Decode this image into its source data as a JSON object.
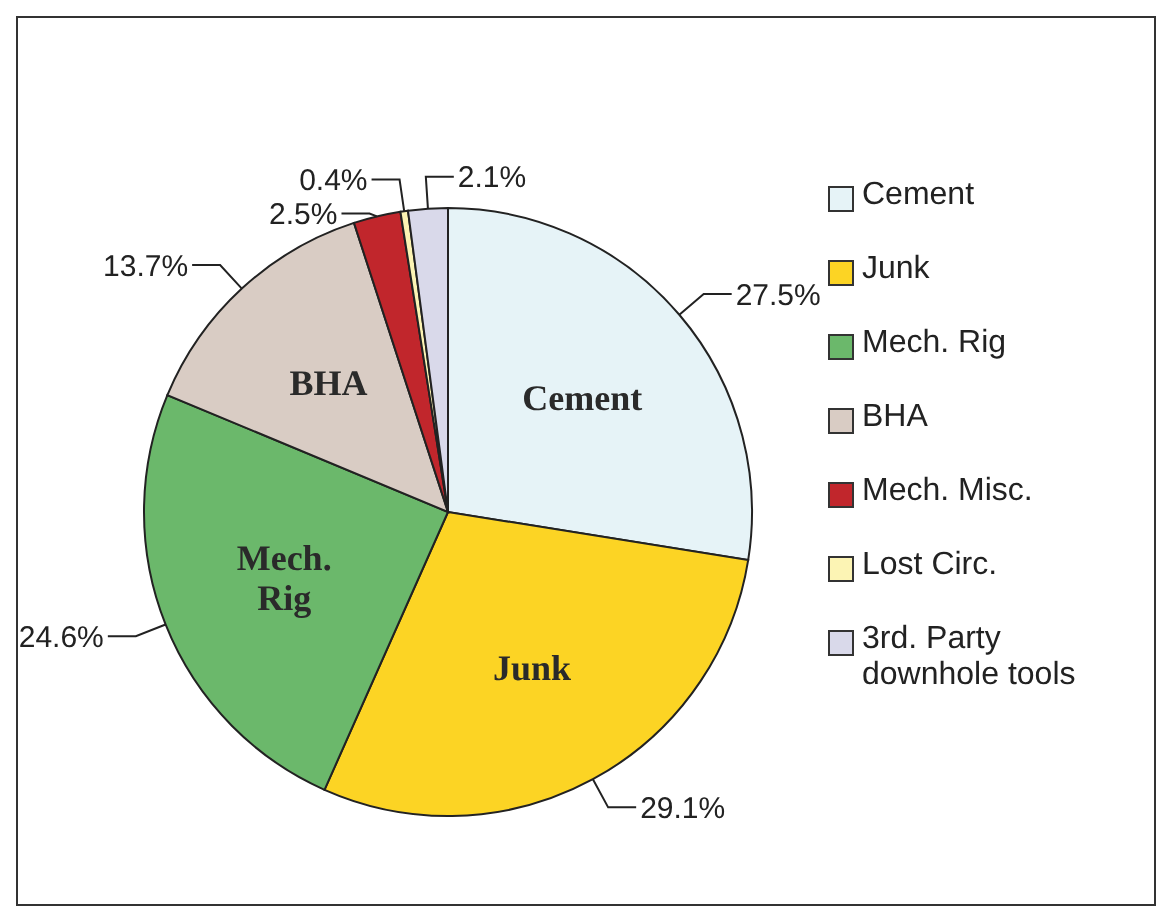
{
  "chart_data": {
    "type": "pie",
    "categories": [
      "Cement",
      "Junk",
      "Mech. Rig",
      "BHA",
      "Mech. Misc.",
      "Lost Circ.",
      "3rd. Party downhole tools"
    ],
    "values": [
      27.5,
      29.1,
      24.6,
      13.7,
      2.5,
      0.4,
      2.1
    ],
    "value_labels": [
      "27.5%",
      "29.1%",
      "24.6%",
      "13.7%",
      "2.5%",
      "0.4%",
      "2.1%"
    ],
    "colors": [
      "#e6f3f7",
      "#fcd424",
      "#6bb86b",
      "#d9ccc4",
      "#c1262c",
      "#fcf4b4",
      "#d9d9ea"
    ],
    "annotations": [
      {
        "text": "Cement",
        "x": "Cement"
      },
      {
        "text": "Junk",
        "x": "Junk"
      },
      {
        "text": "Mech. Rig",
        "x": "Mech. Rig"
      },
      {
        "text": "BHA",
        "x": "BHA"
      }
    ],
    "legend": "right"
  }
}
